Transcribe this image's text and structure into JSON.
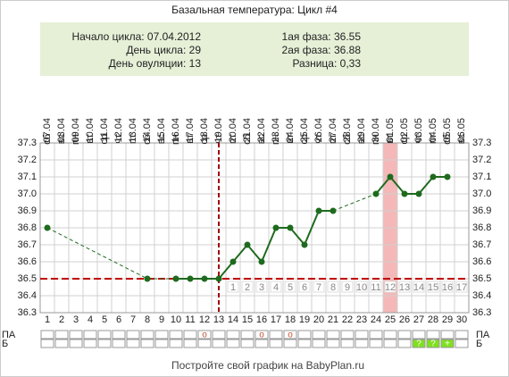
{
  "chart_data": {
    "type": "line",
    "title": "Базальная температура: Цикл #4",
    "info_left": [
      "Начало цикла: 07.04.2012",
      "День цикла: 29",
      "День овуляции: 13"
    ],
    "info_right": [
      "1ая фаза: 36.55",
      "2ая фаза: 36.88",
      "Разница: 0,33"
    ],
    "days": [
      1,
      2,
      3,
      4,
      5,
      6,
      7,
      8,
      9,
      10,
      11,
      12,
      13,
      14,
      15,
      16,
      17,
      18,
      19,
      20,
      21,
      22,
      23,
      24,
      25,
      26,
      27,
      28,
      29,
      30
    ],
    "weekdays": [
      "сб",
      "вс",
      "пн",
      "вт",
      "ср",
      "чт",
      "пт",
      "сб",
      "вс",
      "пн",
      "вт",
      "ср",
      "чт",
      "пт",
      "сб",
      "вс",
      "пн",
      "вт",
      "ср",
      "чт",
      "пт",
      "сб",
      "вс",
      "пн",
      "вт",
      "ср",
      "чт",
      "пт",
      "сб",
      "вс"
    ],
    "dates": [
      "07.04",
      "08.04",
      "09.04",
      "10.04",
      "11.04",
      "12.04",
      "13.04",
      "14.04",
      "15.04",
      "16.04",
      "17.04",
      "18.04",
      "19.04",
      "20.04",
      "21.04",
      "22.04",
      "23.04",
      "24.04",
      "25.04",
      "26.04",
      "27.04",
      "28.04",
      "29.04",
      "30.04",
      "01.05",
      "02.05",
      "03.05",
      "04.05",
      "05.05",
      "06.05"
    ],
    "series": [
      {
        "name": "Температура",
        "color": "#1e6b1e",
        "values": [
          36.8,
          null,
          null,
          null,
          null,
          null,
          null,
          36.5,
          null,
          36.5,
          36.5,
          36.5,
          36.5,
          36.6,
          36.7,
          36.6,
          36.8,
          36.8,
          36.7,
          36.9,
          36.9,
          null,
          null,
          37.0,
          37.1,
          37.0,
          37.0,
          37.1,
          37.1,
          null
        ]
      }
    ],
    "ylim": [
      36.3,
      37.3
    ],
    "yticks": [
      36.3,
      36.4,
      36.5,
      36.6,
      36.7,
      36.8,
      36.9,
      {
        "value": 37,
        "label": "37.0"
      },
      37.1,
      37.2,
      37.3
    ],
    "coverline": 36.5,
    "ovulation_day": 13,
    "highlight_day": 25,
    "phase2_labels": [
      1,
      2,
      3,
      4,
      5,
      6,
      7,
      8,
      9,
      10,
      11,
      12,
      13,
      14,
      15,
      16,
      17
    ],
    "row_labels": [
      "ПА",
      "Б"
    ],
    "pa": [
      null,
      null,
      null,
      null,
      null,
      null,
      null,
      null,
      null,
      null,
      null,
      "о",
      null,
      null,
      null,
      "о",
      null,
      "о",
      null,
      null,
      null,
      null,
      null,
      null,
      null,
      null,
      null,
      null,
      null,
      null
    ],
    "b": [
      null,
      null,
      null,
      null,
      null,
      null,
      null,
      null,
      null,
      null,
      null,
      null,
      null,
      null,
      null,
      null,
      null,
      null,
      null,
      null,
      null,
      null,
      null,
      null,
      null,
      null,
      "?",
      "?",
      "+",
      null
    ],
    "footer": "Постройте свой график на BabyPlan.ru"
  }
}
